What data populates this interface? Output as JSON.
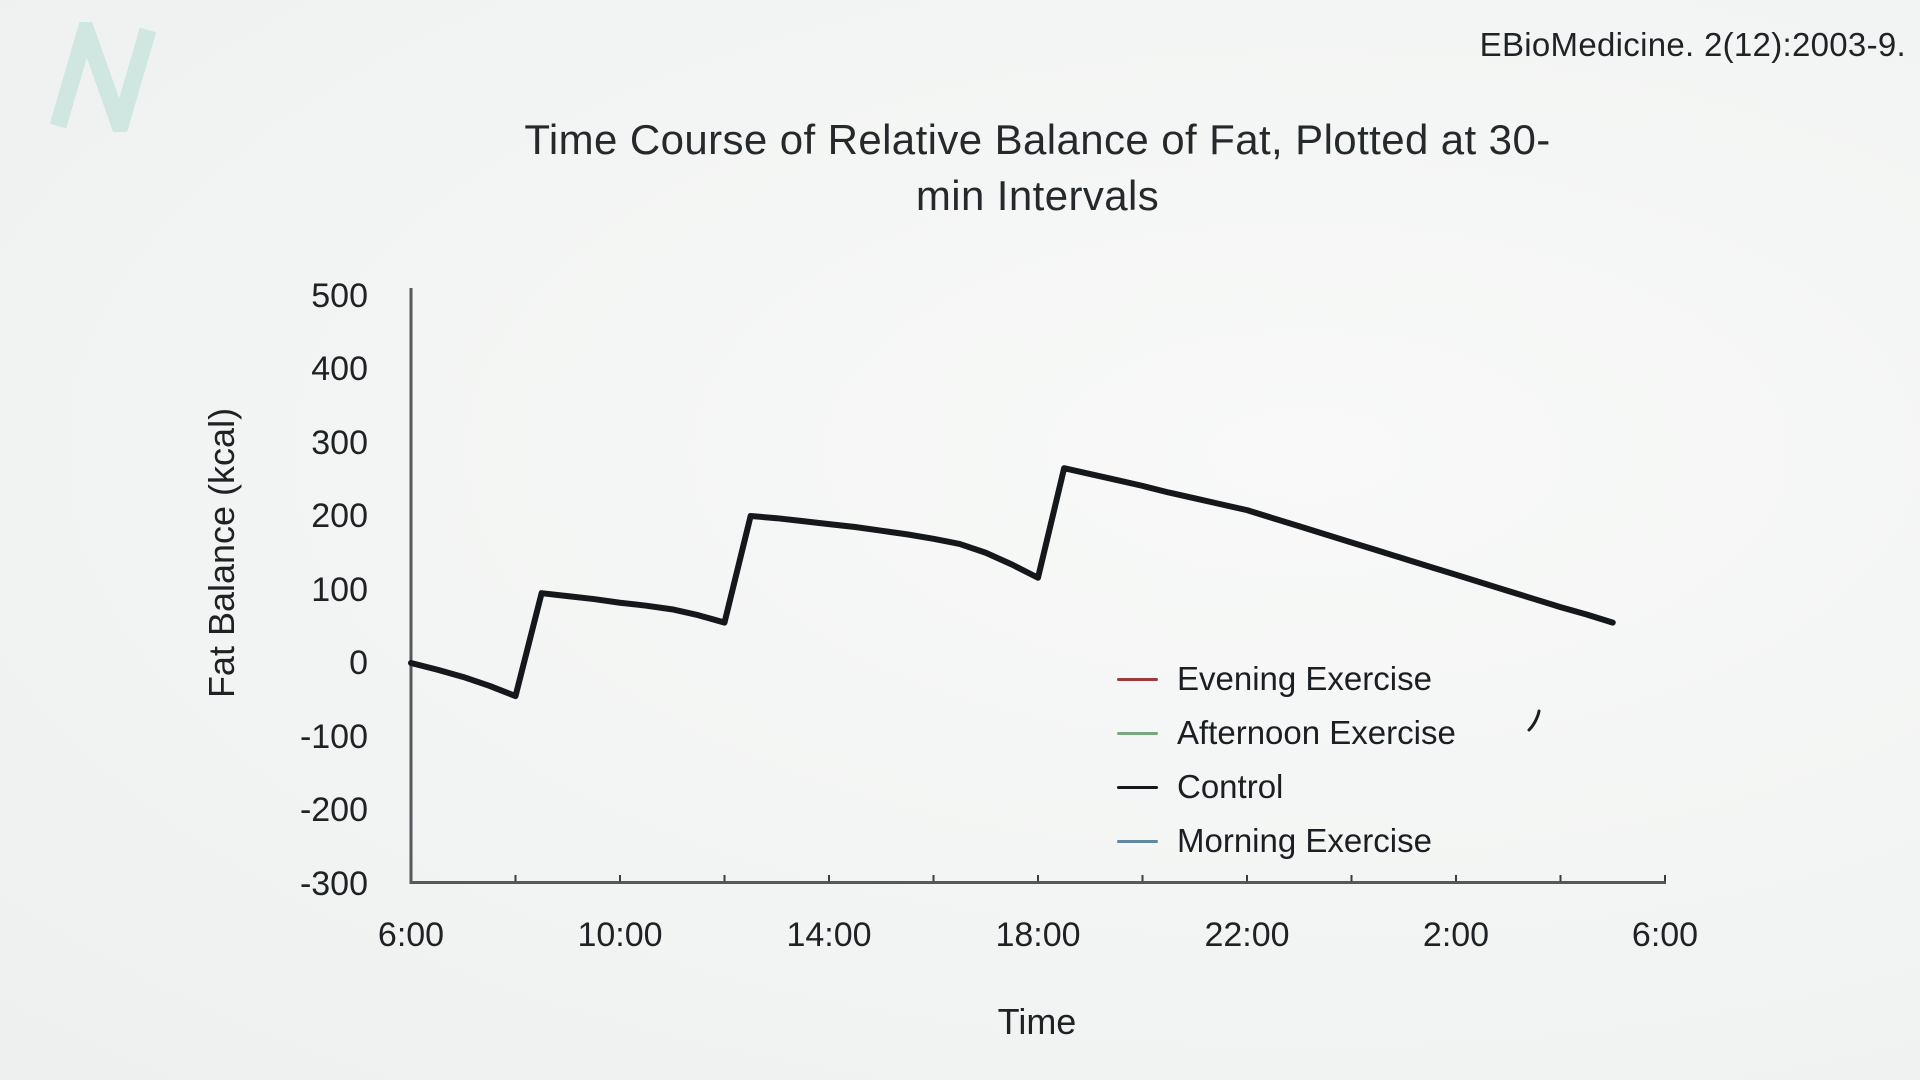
{
  "header": {
    "citation": "EBioMedicine. 2(12):2003-9.",
    "logo_letter": "N",
    "logo_color": "#cfe6e1"
  },
  "title": {
    "line1": "Time Course of Relative Balance of Fat, Plotted at 30-",
    "line2": "min Intervals"
  },
  "chart_data": {
    "type": "line",
    "title": "Time Course of Relative Balance of Fat, Plotted at 30-min Intervals",
    "xlabel": "Time",
    "ylabel": "Fat Balance (kcal)",
    "x_tick_labels": [
      "6:00",
      "10:00",
      "14:00",
      "18:00",
      "22:00",
      "2:00",
      "6:00"
    ],
    "x_tick_hours": [
      0,
      4,
      8,
      12,
      16,
      20,
      24
    ],
    "minor_tick_hours": [
      2,
      4,
      6,
      8,
      10,
      12,
      14,
      16,
      18,
      20,
      22,
      24
    ],
    "y_ticks": [
      500,
      400,
      300,
      200,
      100,
      0,
      -100,
      -200,
      -300
    ],
    "ylim": [
      -300,
      500
    ],
    "xlim_hours": [
      0,
      24
    ],
    "x_unit": "time of day, 30-min intervals starting 6:00",
    "grid": false,
    "legend_position": "lower right",
    "axis_color": "#55595c",
    "series": [
      {
        "name": "Evening Exercise",
        "color": "#9c3a3d",
        "points": []
      },
      {
        "name": "Afternoon Exercise",
        "color": "#7aa87e",
        "points": []
      },
      {
        "name": "Control",
        "color": "#15181b",
        "points": [
          [
            0,
            0
          ],
          [
            0.5,
            -9
          ],
          [
            1,
            -19
          ],
          [
            1.5,
            -31
          ],
          [
            2,
            -45
          ],
          [
            2.5,
            95
          ],
          [
            3,
            91
          ],
          [
            3.5,
            87
          ],
          [
            4,
            82
          ],
          [
            4.5,
            78
          ],
          [
            5,
            73
          ],
          [
            5.5,
            65
          ],
          [
            6,
            55
          ],
          [
            6.5,
            200
          ],
          [
            7,
            197
          ],
          [
            7.5,
            193
          ],
          [
            8,
            189
          ],
          [
            8.5,
            185
          ],
          [
            9,
            180
          ],
          [
            9.5,
            175
          ],
          [
            10,
            169
          ],
          [
            10.5,
            162
          ],
          [
            11,
            150
          ],
          [
            11.5,
            134
          ],
          [
            12,
            116
          ],
          [
            12.5,
            265
          ],
          [
            13,
            257
          ],
          [
            13.5,
            249
          ],
          [
            14,
            241
          ],
          [
            14.5,
            232
          ],
          [
            15,
            224
          ],
          [
            15.5,
            216
          ],
          [
            16,
            208
          ],
          [
            16.5,
            197
          ],
          [
            17,
            186
          ],
          [
            17.5,
            175
          ],
          [
            18,
            164
          ],
          [
            18.5,
            153
          ],
          [
            19,
            142
          ],
          [
            19.5,
            131
          ],
          [
            20,
            120
          ],
          [
            20.5,
            109
          ],
          [
            21,
            98
          ],
          [
            21.5,
            87
          ],
          [
            22,
            76
          ],
          [
            22.5,
            66
          ],
          [
            23,
            55
          ]
        ]
      },
      {
        "name": "Morning Exercise",
        "color": "#6089a1",
        "points": []
      }
    ]
  }
}
